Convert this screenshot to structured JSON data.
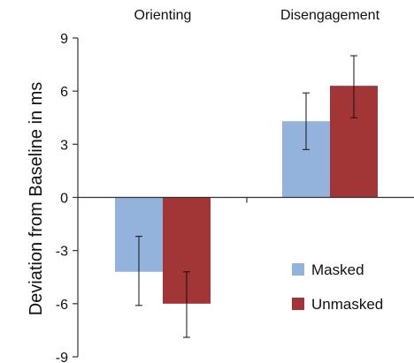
{
  "chart_data": {
    "type": "bar",
    "categories": [
      "Orienting",
      "Disengagement"
    ],
    "series": [
      {
        "name": "Masked",
        "values": [
          -4.2,
          4.3
        ],
        "err_low": [
          -6.1,
          2.7
        ],
        "err_high": [
          -2.2,
          5.9
        ],
        "color": "#93B3DD"
      },
      {
        "name": "Unmasked",
        "values": [
          -6.0,
          6.3
        ],
        "err_low": [
          -7.9,
          4.5
        ],
        "err_high": [
          -4.2,
          8.0
        ],
        "color": "#A23535"
      }
    ],
    "title": "",
    "xlabel": "",
    "ylabel": "Deviation from Baseline in ms",
    "ylim": [
      -9,
      9
    ],
    "yticks": [
      "9",
      "6",
      "3",
      "0",
      "-3",
      "-6",
      "-9"
    ],
    "ytick_values": [
      9,
      6,
      3,
      0,
      -3,
      -6,
      -9
    ],
    "grid": false,
    "legend_position": "bottom-right",
    "axis_color": "#333333"
  }
}
